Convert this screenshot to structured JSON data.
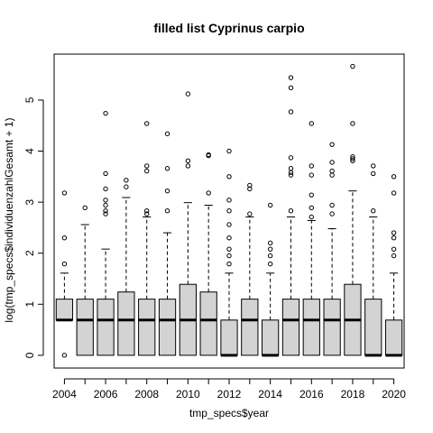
{
  "chart_data": {
    "type": "boxplot",
    "title": "filled list Cyprinus carpio",
    "xlabel": "tmp_specs$year",
    "ylabel": "log(tmp_specs$individuenzahlGesamt + 1)",
    "ylim": [
      -0.25,
      5.9
    ],
    "y_ticks": [
      0,
      1,
      2,
      3,
      4,
      5
    ],
    "x_tick_labels": [
      "2004",
      "2006",
      "2008",
      "2010",
      "2012",
      "2014",
      "2016",
      "2018",
      "2020"
    ],
    "box_fill": "#d3d3d3",
    "grid": false,
    "boxes": [
      {
        "year": "2004",
        "q1": 0.69,
        "median": 0.69,
        "q3": 1.1,
        "whisker_low": 0.69,
        "whisker_high": 1.61,
        "outliers": [
          0,
          1.79,
          2.3,
          3.18
        ]
      },
      {
        "year": "2005",
        "q1": 0,
        "median": 0.69,
        "q3": 1.1,
        "whisker_low": 0,
        "whisker_high": 2.56,
        "outliers": [
          2.89
        ]
      },
      {
        "year": "2006",
        "q1": 0,
        "median": 0.69,
        "q3": 1.1,
        "whisker_low": 0,
        "whisker_high": 2.08,
        "outliers": [
          2.77,
          2.83,
          2.94,
          3.04,
          3.26,
          3.56,
          4.74
        ]
      },
      {
        "year": "2007",
        "q1": 0,
        "median": 0.69,
        "q3": 1.24,
        "whisker_low": 0,
        "whisker_high": 3.09,
        "outliers": [
          3.3,
          3.43
        ]
      },
      {
        "year": "2008",
        "q1": 0,
        "median": 0.69,
        "q3": 1.1,
        "whisker_low": 0,
        "whisker_high": 2.71,
        "outliers": [
          2.77,
          2.83,
          3.61,
          3.71,
          4.54
        ]
      },
      {
        "year": "2009",
        "q1": 0,
        "median": 0.69,
        "q3": 1.1,
        "whisker_low": 0,
        "whisker_high": 2.4,
        "outliers": [
          2.83,
          3.22,
          3.66,
          4.34
        ]
      },
      {
        "year": "2010",
        "q1": 0,
        "median": 0.69,
        "q3": 1.39,
        "whisker_low": 0,
        "whisker_high": 2.99,
        "outliers": [
          3.71,
          3.81,
          5.12
        ]
      },
      {
        "year": "2011",
        "q1": 0,
        "median": 0.69,
        "q3": 1.24,
        "whisker_low": 0,
        "whisker_high": 2.94,
        "outliers": [
          3.18,
          3.91,
          3.93
        ]
      },
      {
        "year": "2012",
        "q1": 0,
        "median": 0,
        "q3": 0.69,
        "whisker_low": 0,
        "whisker_high": 1.61,
        "outliers": [
          1.79,
          1.95,
          2.08,
          2.3,
          2.56,
          2.83,
          3.04,
          3.5,
          4.0
        ]
      },
      {
        "year": "2013",
        "q1": 0,
        "median": 0.69,
        "q3": 1.1,
        "whisker_low": 0,
        "whisker_high": 2.71,
        "outliers": [
          2.77,
          3.26,
          3.33
        ]
      },
      {
        "year": "2014",
        "q1": 0,
        "median": 0,
        "q3": 0.69,
        "whisker_low": 0,
        "whisker_high": 1.61,
        "outliers": [
          1.79,
          1.95,
          2.08,
          2.2,
          2.94
        ]
      },
      {
        "year": "2015",
        "q1": 0,
        "median": 0.69,
        "q3": 1.1,
        "whisker_low": 0,
        "whisker_high": 2.71,
        "outliers": [
          2.83,
          3.53,
          3.58,
          3.66,
          3.87,
          4.77,
          5.24,
          5.44
        ]
      },
      {
        "year": "2016",
        "q1": 0,
        "median": 0.69,
        "q3": 1.1,
        "whisker_low": 0,
        "whisker_high": 2.64,
        "outliers": [
          2.71,
          2.89,
          3.14,
          3.53,
          3.71,
          4.54
        ]
      },
      {
        "year": "2017",
        "q1": 0,
        "median": 0.69,
        "q3": 1.1,
        "whisker_low": 0,
        "whisker_high": 2.48,
        "outliers": [
          2.77,
          2.94,
          3.53,
          3.61,
          3.78,
          4.13
        ]
      },
      {
        "year": "2018",
        "q1": 0,
        "median": 0.69,
        "q3": 1.39,
        "whisker_low": 0,
        "whisker_high": 3.22,
        "outliers": [
          3.81,
          3.85,
          3.89,
          4.54,
          5.66
        ]
      },
      {
        "year": "2019",
        "q1": 0,
        "median": 0,
        "q3": 1.1,
        "whisker_low": 0,
        "whisker_high": 2.71,
        "outliers": [
          2.83,
          3.56,
          3.71
        ]
      },
      {
        "year": "2020",
        "q1": 0,
        "median": 0,
        "q3": 0.69,
        "whisker_low": 0,
        "whisker_high": 1.61,
        "outliers": [
          1.95,
          2.08,
          2.3,
          2.4,
          3.18,
          3.5
        ]
      }
    ]
  }
}
